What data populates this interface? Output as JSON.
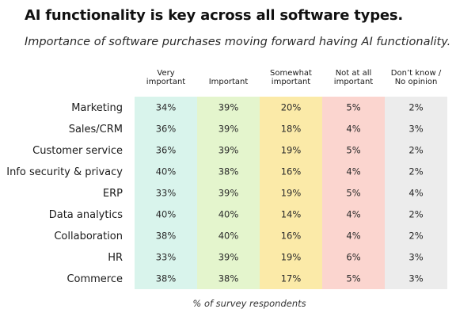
{
  "header": {
    "title": "AI functionality is key across all software types.",
    "subtitle": "Importance of software purchases moving forward having AI functionality."
  },
  "chart_data": {
    "type": "table",
    "title": "AI functionality is key across all software types.",
    "subtitle": "Importance of software purchases moving forward having AI functionality.",
    "columns": [
      {
        "label_lines": [
          "Very",
          "important"
        ],
        "color": "#d9f4ec"
      },
      {
        "label_lines": [
          "Important"
        ],
        "color": "#e4f5cd"
      },
      {
        "label_lines": [
          "Somewhat",
          "important"
        ],
        "color": "#fbeaa8"
      },
      {
        "label_lines": [
          "Not at all",
          "important"
        ],
        "color": "#fbd5cf"
      },
      {
        "label_lines": [
          "Don’t know /",
          "No opinion"
        ],
        "color": "#ececec"
      }
    ],
    "rows": [
      {
        "label": "Marketing",
        "values": [
          "34%",
          "39%",
          "20%",
          "5%",
          "2%"
        ]
      },
      {
        "label": "Sales/CRM",
        "values": [
          "36%",
          "39%",
          "18%",
          "4%",
          "3%"
        ]
      },
      {
        "label": "Customer service",
        "values": [
          "36%",
          "39%",
          "19%",
          "5%",
          "2%"
        ]
      },
      {
        "label": "Info security & privacy",
        "values": [
          "40%",
          "38%",
          "16%",
          "4%",
          "2%"
        ]
      },
      {
        "label": "ERP",
        "values": [
          "33%",
          "39%",
          "19%",
          "5%",
          "4%"
        ]
      },
      {
        "label": "Data analytics",
        "values": [
          "40%",
          "40%",
          "14%",
          "4%",
          "2%"
        ]
      },
      {
        "label": "Collaboration",
        "values": [
          "38%",
          "40%",
          "16%",
          "4%",
          "2%"
        ]
      },
      {
        "label": "HR",
        "values": [
          "33%",
          "39%",
          "19%",
          "6%",
          "3%"
        ]
      },
      {
        "label": "Commerce",
        "values": [
          "38%",
          "38%",
          "17%",
          "5%",
          "3%"
        ]
      }
    ],
    "footnote": "% of survey respondents"
  }
}
